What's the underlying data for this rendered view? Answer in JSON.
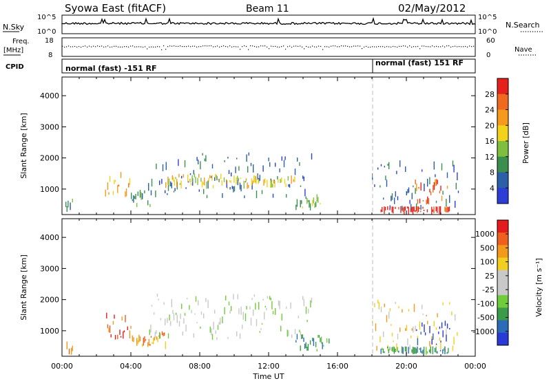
{
  "header": {
    "station": "Syowa East (fitACF)",
    "beam": "Beam 11",
    "date": "02/May/2012"
  },
  "noise_panel": {
    "left_label": "N.Sky",
    "right_label": "N.Search",
    "left_ticks": [
      "10^5",
      "10^0"
    ],
    "right_ticks": [
      "10^5",
      "10^0"
    ]
  },
  "freq_panel": {
    "left_label_1": "Freq.",
    "left_label_2": "[MHz]",
    "left_ticks": [
      "18",
      "8"
    ],
    "right_label": "Nave",
    "right_ticks": [
      "60",
      "0"
    ]
  },
  "cpid_panel": {
    "label": "CPID",
    "modes": [
      "normal (fast) -151 RF",
      "normal (fast) 151 RF"
    ]
  },
  "colors": {
    "power_scale": [
      "#2b3fd6",
      "#2b5fa8",
      "#3a8f4f",
      "#7fbf3f",
      "#f2d21a",
      "#f59a1c",
      "#ef6a1e",
      "#e6211c"
    ],
    "velocity_scale": [
      "#2a3ad6",
      "#2b6cb8",
      "#3c9a4b",
      "#6fcc3a",
      "#c8c8c8",
      "#c8c8c8",
      "#f2cf1f",
      "#f29a1c",
      "#ef5f1e",
      "#e41c1c"
    ]
  },
  "chart_data": [
    {
      "type": "heatmap",
      "name": "Power",
      "ylabel": "Slant Range [km]",
      "xlabel": "Time UT",
      "x_ticks": [
        "00:00",
        "04:00",
        "08:00",
        "12:00",
        "16:00",
        "20:00",
        "00:00"
      ],
      "y_ticks": [
        "1000",
        "2000",
        "3000",
        "4000"
      ],
      "ylim": [
        180,
        4600
      ],
      "xlim_hours": [
        0,
        24
      ],
      "colorbar": {
        "label": "Power [dB]",
        "ticks": [
          "28",
          "24",
          "20",
          "16",
          "12",
          "8",
          "4"
        ]
      },
      "echo_regions": [
        {
          "t0": 0.2,
          "t1": 0.6,
          "r0": 200,
          "r1": 700,
          "level": 2
        },
        {
          "t0": 2.5,
          "t1": 4.0,
          "r0": 700,
          "r1": 1600,
          "level": 5
        },
        {
          "t0": 4.0,
          "t1": 5.5,
          "r0": 400,
          "r1": 1000,
          "level": 2
        },
        {
          "t0": 5.0,
          "t1": 14.5,
          "r0": 700,
          "r1": 2200,
          "level": 1
        },
        {
          "t0": 6.0,
          "t1": 13.5,
          "r0": 1000,
          "r1": 1500,
          "level": 4
        },
        {
          "t0": 13.5,
          "t1": 15.0,
          "r0": 300,
          "r1": 900,
          "level": 3
        },
        {
          "t0": 18.0,
          "t1": 23.0,
          "r0": 300,
          "r1": 2000,
          "level": 1
        },
        {
          "t0": 18.5,
          "t1": 22.5,
          "r0": 250,
          "r1": 450,
          "level": 7
        },
        {
          "t0": 20.5,
          "t1": 22.5,
          "r0": 500,
          "r1": 1400,
          "level": 6
        }
      ]
    },
    {
      "type": "heatmap",
      "name": "Velocity",
      "ylabel": "Slant Range [km]",
      "xlabel": "Time UT",
      "x_ticks": [
        "00:00",
        "04:00",
        "08:00",
        "12:00",
        "16:00",
        "20:00",
        "00:00"
      ],
      "y_ticks": [
        "1000",
        "2000",
        "3000",
        "4000"
      ],
      "ylim": [
        180,
        4600
      ],
      "xlim_hours": [
        0,
        24
      ],
      "colorbar": {
        "label": "Velocity [m s⁻¹]",
        "ticks": [
          "1000",
          "500",
          "100",
          "25",
          "-25",
          "-100",
          "-500",
          "-1000"
        ]
      },
      "echo_regions": [
        {
          "t0": 0.2,
          "t1": 0.6,
          "r0": 200,
          "r1": 700,
          "level": 7
        },
        {
          "t0": 2.5,
          "t1": 4.0,
          "r0": 700,
          "r1": 1600,
          "level": 8
        },
        {
          "t0": 4.0,
          "t1": 6.0,
          "r0": 400,
          "r1": 1000,
          "level": 7
        },
        {
          "t0": 5.0,
          "t1": 14.5,
          "r0": 700,
          "r1": 2200,
          "level": 4
        },
        {
          "t0": 13.5,
          "t1": 15.5,
          "r0": 300,
          "r1": 900,
          "level": 2
        },
        {
          "t0": 18.0,
          "t1": 23.0,
          "r0": 300,
          "r1": 2000,
          "level": 6
        },
        {
          "t0": 18.5,
          "t1": 22.5,
          "r0": 250,
          "r1": 500,
          "level": 2
        },
        {
          "t0": 20.5,
          "t1": 22.5,
          "r0": 500,
          "r1": 1400,
          "level": 0
        }
      ]
    }
  ]
}
